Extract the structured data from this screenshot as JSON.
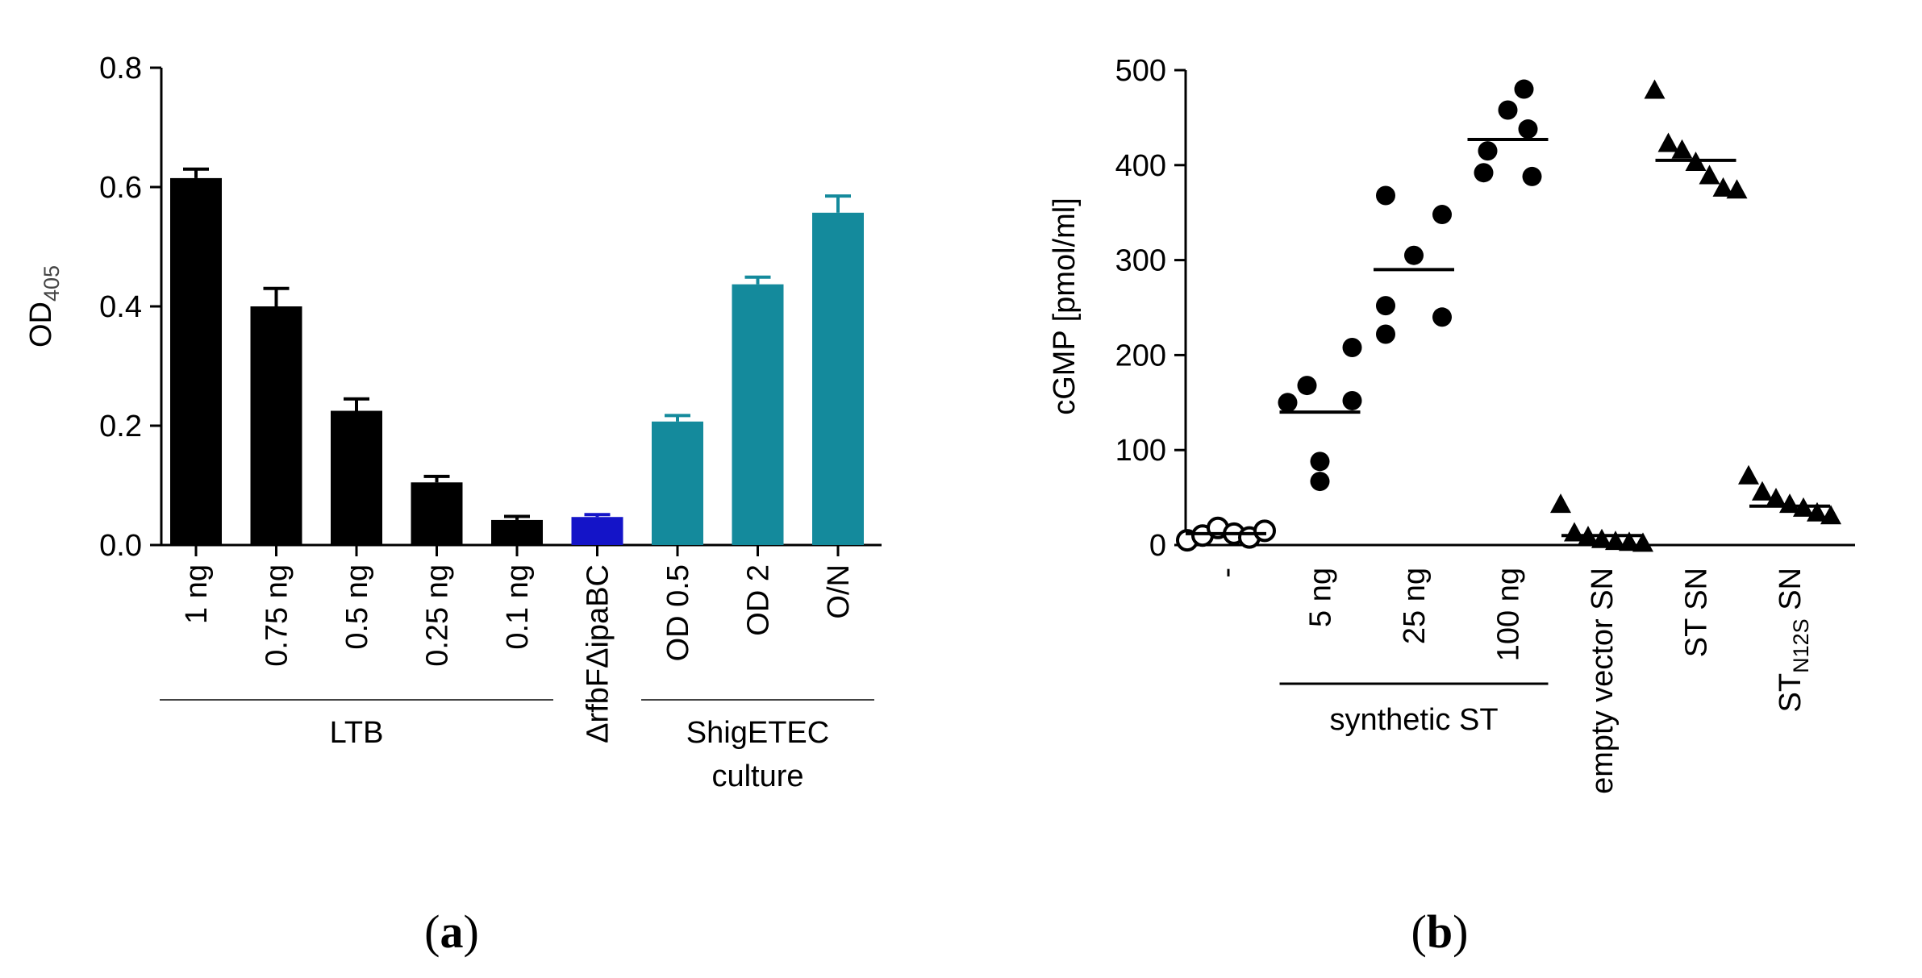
{
  "chart_data": [
    {
      "type": "bar",
      "panel_label": "(a)",
      "panel_letter": "a",
      "ylabel": "OD",
      "ylabel_sub": "405",
      "ylim": [
        0,
        0.8
      ],
      "yticks": [
        "0.0",
        "0.2",
        "0.4",
        "0.6",
        "0.8"
      ],
      "categories": [
        "1 ng",
        "0.75 ng",
        "0.5 ng",
        "0.25 ng",
        "0.1 ng",
        "ΔrfbFΔipaBC",
        "OD 0.5",
        "OD 2",
        "O/N"
      ],
      "values": [
        0.615,
        0.4,
        0.225,
        0.105,
        0.042,
        0.047,
        0.207,
        0.437,
        0.557
      ],
      "errors": [
        0.015,
        0.03,
        0.02,
        0.01,
        0.006,
        0.004,
        0.01,
        0.012,
        0.028
      ],
      "colors": [
        "#000000",
        "#000000",
        "#000000",
        "#000000",
        "#000000",
        "#1414c8",
        "#148a9c",
        "#148a9c",
        "#148a9c"
      ],
      "groups": [
        {
          "label": "LTB",
          "from": 0,
          "to": 4
        },
        {
          "label": "ShigETEC",
          "label2": "culture",
          "from": 6,
          "to": 8
        }
      ]
    },
    {
      "type": "scatter",
      "panel_label": "(b)",
      "panel_letter": "b",
      "ylabel": "cGMP [pmol/ml]",
      "ylim": [
        0,
        500
      ],
      "yticks": [
        "0",
        "100",
        "200",
        "300",
        "400",
        "500"
      ],
      "categories": [
        {
          "label": "-"
        },
        {
          "label": "5 ng"
        },
        {
          "label": "25 ng"
        },
        {
          "label": "100 ng"
        },
        {
          "label": "empty vector SN"
        },
        {
          "label": "ST SN"
        },
        {
          "label": "ST",
          "sub": "N12S",
          "suffix": " SN"
        }
      ],
      "groups": [
        {
          "label": "synthetic ST",
          "from": 1,
          "to": 3
        }
      ],
      "series": [
        {
          "category": 0,
          "marker": "open-circle",
          "values": [
            5,
            10,
            18,
            12,
            8,
            15
          ],
          "mean": 12
        },
        {
          "category": 1,
          "marker": "circle",
          "values": [
            208,
            168,
            152,
            150,
            88,
            67
          ],
          "mean": 140
        },
        {
          "category": 2,
          "marker": "circle",
          "values": [
            368,
            348,
            305,
            252,
            240,
            222
          ],
          "mean": 290
        },
        {
          "category": 3,
          "marker": "circle",
          "values": [
            480,
            458,
            438,
            415,
            392,
            388
          ],
          "mean": 427
        },
        {
          "category": 4,
          "marker": "triangle",
          "values": [
            42,
            12,
            8,
            5,
            3,
            2,
            1
          ],
          "mean": 10
        },
        {
          "category": 5,
          "marker": "triangle",
          "values": [
            478,
            422,
            415,
            402,
            388,
            375,
            373
          ],
          "mean": 405
        },
        {
          "category": 6,
          "marker": "triangle",
          "values": [
            72,
            55,
            48,
            42,
            38,
            33,
            30
          ],
          "mean": 41
        }
      ]
    }
  ]
}
